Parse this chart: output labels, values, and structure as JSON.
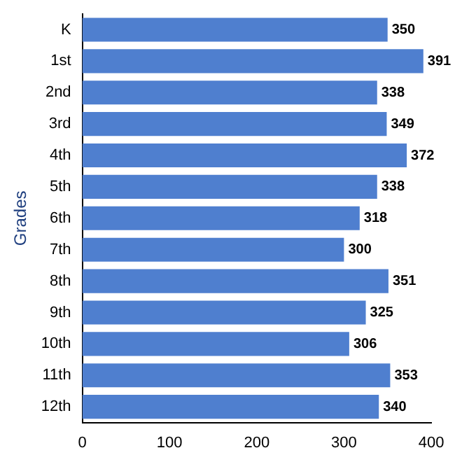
{
  "chart_data": {
    "type": "bar",
    "orientation": "horizontal",
    "ylabel": "Grades",
    "categories": [
      "K",
      "1st",
      "2nd",
      "3rd",
      "4th",
      "5th",
      "6th",
      "7th",
      "8th",
      "9th",
      "10th",
      "11th",
      "12th"
    ],
    "values": [
      350,
      391,
      338,
      349,
      372,
      338,
      318,
      300,
      351,
      325,
      306,
      353,
      340
    ],
    "color": "#4f7fcf",
    "xlim": [
      0,
      400
    ],
    "xticks": [
      0,
      100,
      200,
      300,
      400
    ],
    "grid": false,
    "legend": false,
    "data_labels": true
  }
}
